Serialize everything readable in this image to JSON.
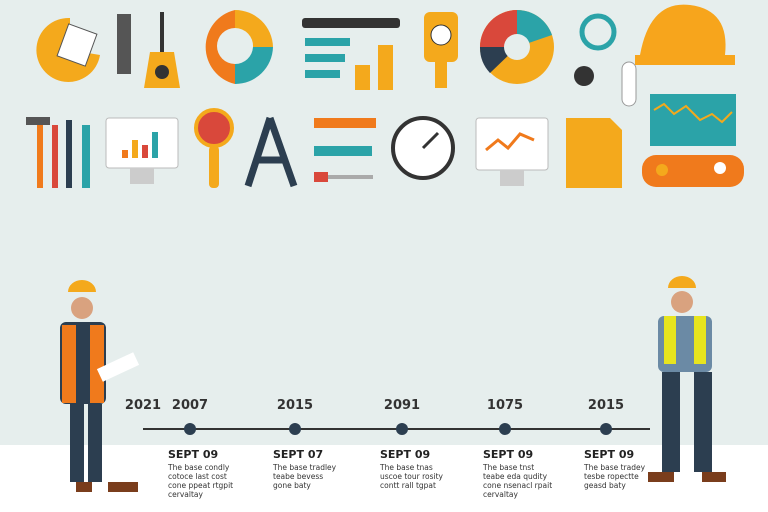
{
  "timeline": {
    "start_label": "2021",
    "events": [
      {
        "year": "2007",
        "date": "SEPT 09",
        "lines": [
          "The base condly",
          "cotoce last cost",
          "cone ppeat rtgpit",
          "cervaltay"
        ]
      },
      {
        "year": "2015",
        "date": "SEPT 07",
        "lines": [
          "The base tradley",
          "teabe bevess",
          "gone baty"
        ]
      },
      {
        "year": "2091",
        "date": "SEPT 09",
        "lines": [
          "The base tnas",
          "uscoe tour rosity",
          "contt rall tgpat"
        ]
      },
      {
        "year": "1075",
        "date": "SEPT 09",
        "lines": [
          "The base tnst",
          "teabe eda qudity",
          "cone nsenacl rpait",
          "cervaltay"
        ]
      },
      {
        "year": "2015",
        "date": "SEPT 09",
        "lines": [
          "The base tradey",
          "tesbe ropectte",
          "geasd baty"
        ]
      }
    ]
  }
}
